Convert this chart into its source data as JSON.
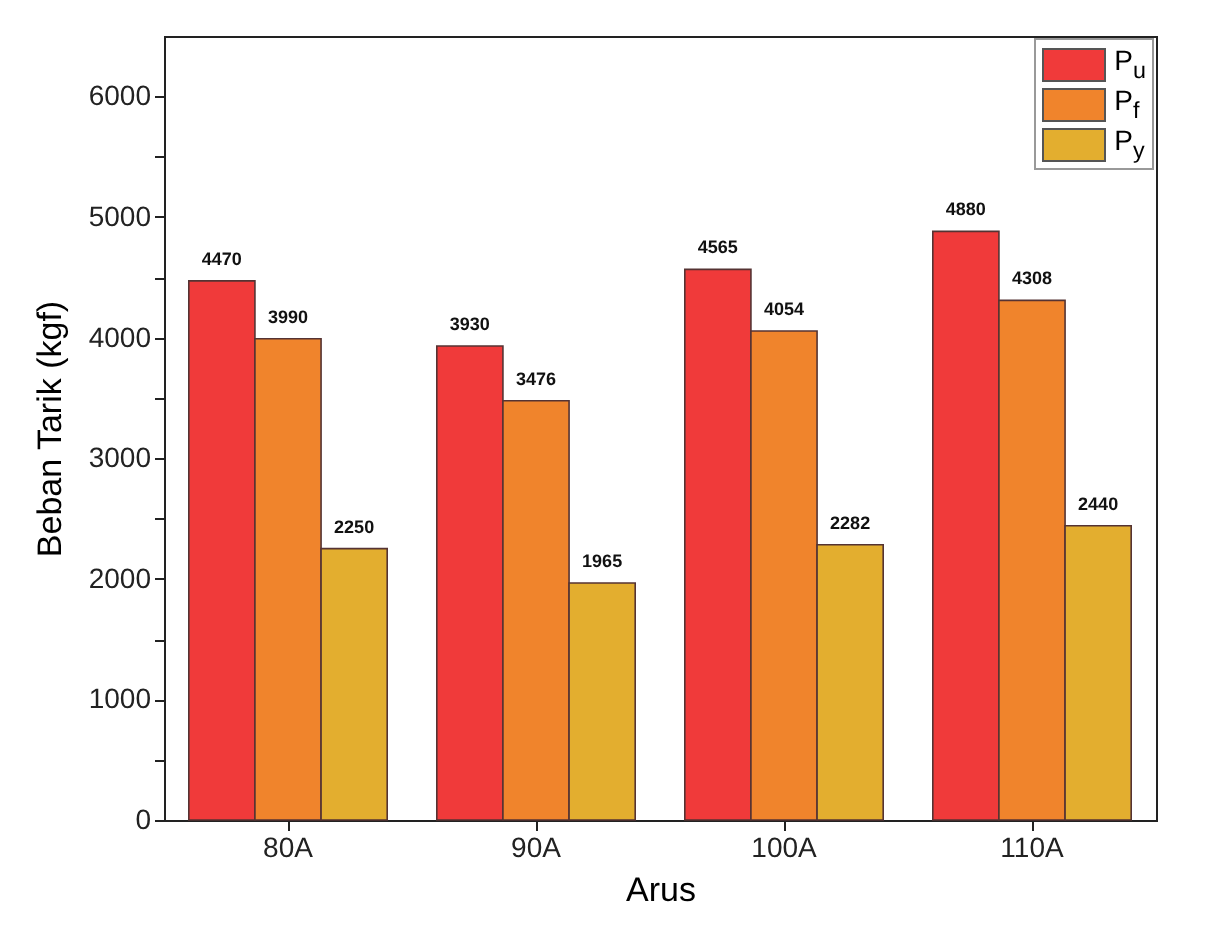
{
  "chart_data": {
    "type": "bar",
    "xlabel": "Arus",
    "ylabel": "Beban Tarik (kgf)",
    "categories": [
      "80A",
      "90A",
      "100A",
      "110A"
    ],
    "series": [
      {
        "name": "P$_{u}$",
        "color": "#f03a3a",
        "values": [
          4470,
          3930,
          4565,
          4880
        ]
      },
      {
        "name": "P$_{f}$",
        "color": "#f0842c",
        "values": [
          3990,
          3476,
          4054,
          4308
        ]
      },
      {
        "name": "P$_{y}$",
        "color": "#e3ae2f",
        "values": [
          2250,
          1965,
          2282,
          2440
        ]
      }
    ],
    "ylim": [
      0,
      6500
    ],
    "yticks": [
      0,
      {
        "value": 500,
        "label": null
      },
      1000,
      {
        "value": 1500,
        "label": null
      },
      2000,
      {
        "value": 2500,
        "label": null
      },
      3000,
      {
        "value": 3500,
        "label": null
      },
      4000,
      {
        "value": 4500,
        "label": null
      },
      5000,
      {
        "value": 5500,
        "label": null
      },
      6000
    ],
    "data_labels": true,
    "grid": false,
    "legend": "top right"
  }
}
